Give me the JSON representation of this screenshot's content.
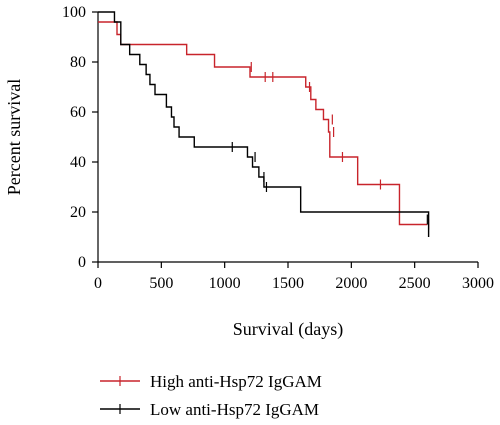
{
  "chart_data": {
    "type": "line",
    "title": "",
    "xlabel": "Survival (days)",
    "ylabel": "Percent survival",
    "xlim": [
      0,
      3000
    ],
    "ylim": [
      0,
      100
    ],
    "xticks": [
      0,
      500,
      1000,
      1500,
      2000,
      2500,
      3000
    ],
    "yticks": [
      0,
      20,
      40,
      60,
      80,
      100
    ],
    "grid": false,
    "legend_position": "bottom",
    "series": [
      {
        "name": "High anti-Hsp72 IgGAM",
        "color": "#c8242b",
        "step": "post",
        "points": [
          [
            0,
            96
          ],
          [
            150,
            96
          ],
          [
            150,
            91
          ],
          [
            180,
            91
          ],
          [
            180,
            87
          ],
          [
            700,
            87
          ],
          [
            700,
            83
          ],
          [
            920,
            83
          ],
          [
            920,
            78
          ],
          [
            1200,
            78
          ],
          [
            1200,
            74
          ],
          [
            1640,
            74
          ],
          [
            1640,
            70
          ],
          [
            1680,
            70
          ],
          [
            1680,
            65
          ],
          [
            1720,
            65
          ],
          [
            1720,
            61
          ],
          [
            1780,
            61
          ],
          [
            1780,
            57
          ],
          [
            1820,
            57
          ],
          [
            1820,
            52
          ],
          [
            1830,
            52
          ],
          [
            1830,
            42
          ],
          [
            2050,
            42
          ],
          [
            2050,
            31
          ],
          [
            2380,
            31
          ],
          [
            2380,
            15
          ],
          [
            2600,
            15
          ]
        ],
        "censored": [
          [
            1210,
            78
          ],
          [
            1320,
            74
          ],
          [
            1380,
            74
          ],
          [
            1670,
            70
          ],
          [
            1850,
            57
          ],
          [
            1860,
            52
          ],
          [
            1930,
            42
          ],
          [
            2230,
            31
          ],
          [
            2610,
            15
          ]
        ]
      },
      {
        "name": "Low anti-Hsp72 IgGAM",
        "color": "#000000",
        "step": "post",
        "points": [
          [
            0,
            100
          ],
          [
            130,
            100
          ],
          [
            130,
            96
          ],
          [
            180,
            96
          ],
          [
            180,
            87
          ],
          [
            250,
            87
          ],
          [
            250,
            83
          ],
          [
            330,
            83
          ],
          [
            330,
            79
          ],
          [
            380,
            79
          ],
          [
            380,
            75
          ],
          [
            410,
            75
          ],
          [
            410,
            71
          ],
          [
            450,
            71
          ],
          [
            450,
            67
          ],
          [
            540,
            67
          ],
          [
            540,
            62
          ],
          [
            580,
            62
          ],
          [
            580,
            58
          ],
          [
            600,
            58
          ],
          [
            600,
            54
          ],
          [
            640,
            54
          ],
          [
            640,
            50
          ],
          [
            760,
            50
          ],
          [
            760,
            46
          ],
          [
            1180,
            46
          ],
          [
            1180,
            42
          ],
          [
            1220,
            42
          ],
          [
            1220,
            38
          ],
          [
            1270,
            38
          ],
          [
            1270,
            34
          ],
          [
            1310,
            34
          ],
          [
            1310,
            30
          ],
          [
            1600,
            30
          ],
          [
            1600,
            20
          ],
          [
            2610,
            20
          ],
          [
            2610,
            10
          ]
        ],
        "censored": [
          [
            1060,
            46
          ],
          [
            1240,
            42
          ],
          [
            1310,
            34
          ],
          [
            1330,
            30
          ],
          [
            2600,
            17
          ]
        ]
      }
    ]
  }
}
